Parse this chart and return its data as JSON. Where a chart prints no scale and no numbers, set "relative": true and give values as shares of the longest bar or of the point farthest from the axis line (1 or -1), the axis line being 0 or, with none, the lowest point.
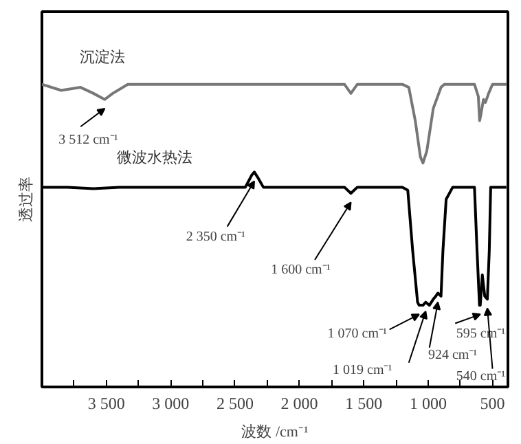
{
  "chart_data": {
    "type": "line",
    "relative": true,
    "xlabel": "波数 /cm⁻¹",
    "ylabel": "透过率",
    "tick_labels": "x",
    "grid": false,
    "legend": false,
    "marker": "none",
    "line_style": "solid",
    "xlim": [
      4000,
      380
    ],
    "xticks": [
      {
        "value": 3750,
        "label": null
      },
      {
        "value": 3500,
        "label": "3 500"
      },
      {
        "value": 3250,
        "label": null
      },
      {
        "value": 3000,
        "label": "3 000"
      },
      {
        "value": 2750,
        "label": null
      },
      {
        "value": 2500,
        "label": "2 500"
      },
      {
        "value": 2250,
        "label": null
      },
      {
        "value": 2000,
        "label": "2 000"
      },
      {
        "value": 1750,
        "label": null
      },
      {
        "value": 1500,
        "label": "1 500"
      },
      {
        "value": 1250,
        "label": null
      },
      {
        "value": 1000,
        "label": "1 000"
      },
      {
        "value": 750,
        "label": null
      },
      {
        "value": 500,
        "label": "500"
      }
    ],
    "series": [
      {
        "name": "沉淀法",
        "color": "#777777",
        "x": [
          4000,
          3850,
          3700,
          3600,
          3512,
          3450,
          3333,
          2000,
          1650,
          1600,
          1550,
          1200,
          1150,
          1100,
          1060,
          1040,
          1010,
          960,
          900,
          874,
          640,
          610,
          600,
          590,
          570,
          555,
          530,
          500,
          393
        ],
        "values": [
          1.0,
          0.98,
          0.99,
          0.97,
          0.95,
          0.97,
          1.0,
          1.0,
          1.0,
          0.97,
          1.0,
          1.0,
          0.99,
          0.88,
          0.76,
          0.74,
          0.78,
          0.92,
          0.99,
          1.0,
          1.0,
          0.96,
          0.88,
          0.9,
          0.95,
          0.94,
          0.97,
          1.0,
          1.0
        ]
      },
      {
        "name": "微波水热法",
        "color": "#000000",
        "x": [
          4000,
          3800,
          3600,
          3400,
          3000,
          2600,
          2420,
          2370,
          2350,
          2320,
          2280,
          2000,
          1650,
          1600,
          1550,
          1200,
          1158,
          1120,
          1082,
          1070,
          1040,
          1019,
          990,
          960,
          940,
          924,
          900,
          885,
          860,
          809,
          700,
          640,
          620,
          601,
          595,
          579,
          560,
          540,
          525,
          514,
          480,
          393
        ],
        "values": [
          0.66,
          0.66,
          0.655,
          0.66,
          0.66,
          0.66,
          0.66,
          0.7,
          0.71,
          0.69,
          0.66,
          0.66,
          0.66,
          0.64,
          0.66,
          0.66,
          0.65,
          0.45,
          0.28,
          0.27,
          0.27,
          0.28,
          0.27,
          0.29,
          0.3,
          0.31,
          0.3,
          0.45,
          0.62,
          0.66,
          0.66,
          0.66,
          0.45,
          0.27,
          0.27,
          0.37,
          0.3,
          0.29,
          0.45,
          0.66,
          0.66,
          0.66
        ]
      }
    ],
    "annotations": [
      {
        "text": "3 512 cm⁻¹",
        "x": 3512,
        "y": 0.95
      },
      {
        "text": "2 350 cm⁻¹",
        "x": 2350,
        "y": 0.71
      },
      {
        "text": "1 600 cm⁻¹",
        "x": 1600,
        "y": 0.64
      },
      {
        "text": "1 070 cm⁻¹",
        "x": 1070,
        "y": 0.27
      },
      {
        "text": "1 019 cm⁻¹",
        "x": 1019,
        "y": 0.28
      },
      {
        "text": "924 cm⁻¹",
        "x": 924,
        "y": 0.31
      },
      {
        "text": "595 cm⁻¹",
        "x": 595,
        "y": 0.27
      },
      {
        "text": "540 cm⁻¹",
        "x": 540,
        "y": 0.29
      }
    ]
  }
}
